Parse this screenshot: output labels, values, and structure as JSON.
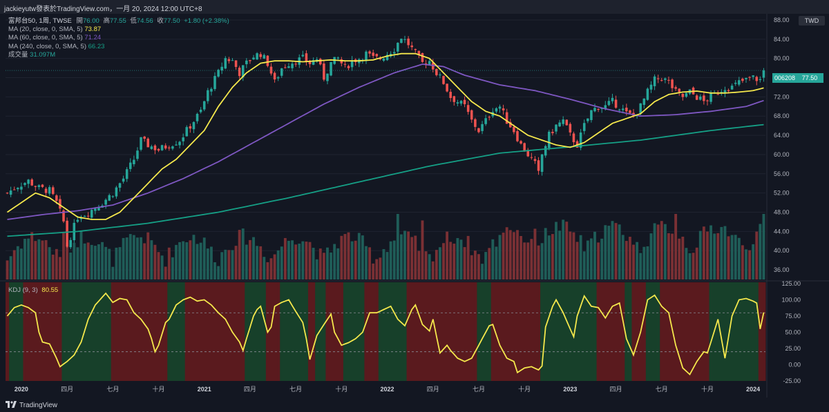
{
  "header": {
    "text": "jackieyutw發表於TradingView.com，一月 20, 2024 12:00 UTC+8"
  },
  "legend": {
    "symbol": "富邦台50, 1周, TWSE",
    "open_label": "開",
    "open": "76.00",
    "high_label": "高",
    "high": "77.55",
    "low_label": "低",
    "low": "74.56",
    "close_label": "收",
    "close": "77.50",
    "change": "+1.80 (+2.38%)",
    "ma20_label": "MA (20, close, 0, SMA, 5)",
    "ma20": "73.87",
    "ma60_label": "MA (60, close, 0, SMA, 5)",
    "ma60": "71.24",
    "ma240_label": "MA (240, close, 0, SMA, 5)",
    "ma240": "66.23",
    "volume_label": "成交量",
    "volume": "31.097M"
  },
  "kdj_legend": {
    "label": "KDJ (9, 3)",
    "value": "80.55"
  },
  "currency": "TWD",
  "price_tag": {
    "symbol": "006208",
    "price": "77.50"
  },
  "footer": {
    "brand": "TradingView"
  },
  "colors": {
    "up": "#26a69a",
    "down": "#ef5350",
    "ma20": "#f5e84c",
    "ma60": "#7e57c2",
    "ma240": "#15a086",
    "kdj": "#f5e84c",
    "bg_up": "#17402a",
    "bg_down": "#5a1a1e"
  },
  "chart_data": {
    "type": "candlestick",
    "price_axis": {
      "ticks": [
        36,
        40,
        44,
        48,
        52,
        56,
        60,
        64,
        68,
        72,
        76,
        80,
        84,
        88
      ],
      "range": [
        34,
        89
      ]
    },
    "kdj_axis": {
      "ticks": [
        -25,
        0,
        25,
        50,
        75,
        100,
        125
      ],
      "labels": [
        "-25.00",
        "0.00",
        "25.00",
        "50.00",
        "75.00",
        "100.00",
        "125.00"
      ],
      "range": [
        -25,
        127
      ],
      "dashed": [
        20,
        80
      ]
    },
    "x_axis": {
      "labels": [
        {
          "text": "2020",
          "week": 4,
          "bold": true
        },
        {
          "text": "四月",
          "week": 17
        },
        {
          "text": "七月",
          "week": 30
        },
        {
          "text": "十月",
          "week": 43
        },
        {
          "text": "2021",
          "week": 56,
          "bold": true
        },
        {
          "text": "四月",
          "week": 69
        },
        {
          "text": "七月",
          "week": 82
        },
        {
          "text": "十月",
          "week": 95
        },
        {
          "text": "2022",
          "week": 108,
          "bold": true
        },
        {
          "text": "四月",
          "week": 121
        },
        {
          "text": "七月",
          "week": 134
        },
        {
          "text": "十月",
          "week": 147
        },
        {
          "text": "2023",
          "week": 160,
          "bold": true
        },
        {
          "text": "四月",
          "week": 173
        },
        {
          "text": "七月",
          "week": 186
        },
        {
          "text": "十月",
          "week": 199
        },
        {
          "text": "2024",
          "week": 212,
          "bold": true
        }
      ]
    },
    "weeks": 216,
    "close_anchors": [
      [
        0,
        52
      ],
      [
        3,
        53.5
      ],
      [
        6,
        54.5
      ],
      [
        9,
        53
      ],
      [
        12,
        52.5
      ],
      [
        14,
        50
      ],
      [
        16,
        46
      ],
      [
        17,
        41
      ],
      [
        18,
        43
      ],
      [
        20,
        47
      ],
      [
        23,
        48
      ],
      [
        27,
        50
      ],
      [
        30,
        52
      ],
      [
        33,
        55
      ],
      [
        36,
        59
      ],
      [
        38,
        63
      ],
      [
        40,
        62
      ],
      [
        43,
        61
      ],
      [
        46,
        62
      ],
      [
        49,
        63
      ],
      [
        52,
        66
      ],
      [
        55,
        69
      ],
      [
        57,
        73
      ],
      [
        60,
        77
      ],
      [
        62,
        80
      ],
      [
        64,
        79.5
      ],
      [
        66,
        77
      ],
      [
        68,
        79
      ],
      [
        70,
        80.5
      ],
      [
        72,
        81
      ],
      [
        74,
        79
      ],
      [
        76,
        75
      ],
      [
        78,
        78
      ],
      [
        80,
        79
      ],
      [
        82,
        79.5
      ],
      [
        84,
        80
      ],
      [
        86,
        79
      ],
      [
        88,
        80
      ],
      [
        90,
        76
      ],
      [
        92,
        79
      ],
      [
        94,
        80
      ],
      [
        96,
        78
      ],
      [
        98,
        79.5
      ],
      [
        100,
        80
      ],
      [
        102,
        81
      ],
      [
        104,
        80
      ],
      [
        106,
        80
      ],
      [
        108,
        81
      ],
      [
        110,
        82
      ],
      [
        112,
        84.5
      ],
      [
        114,
        83
      ],
      [
        116,
        81
      ],
      [
        118,
        79
      ],
      [
        120,
        79.5
      ],
      [
        122,
        77
      ],
      [
        124,
        75
      ],
      [
        126,
        72
      ],
      [
        128,
        71
      ],
      [
        130,
        70
      ],
      [
        132,
        67
      ],
      [
        134,
        65
      ],
      [
        136,
        67
      ],
      [
        138,
        69.5
      ],
      [
        140,
        70
      ],
      [
        142,
        67
      ],
      [
        144,
        65
      ],
      [
        146,
        62
      ],
      [
        148,
        60
      ],
      [
        150,
        58
      ],
      [
        151,
        56
      ],
      [
        152,
        60
      ],
      [
        154,
        64
      ],
      [
        156,
        66
      ],
      [
        158,
        67
      ],
      [
        160,
        64
      ],
      [
        162,
        62
      ],
      [
        164,
        66
      ],
      [
        166,
        69
      ],
      [
        168,
        70
      ],
      [
        170,
        70
      ],
      [
        172,
        71
      ],
      [
        174,
        70
      ],
      [
        176,
        68.5
      ],
      [
        178,
        68
      ],
      [
        180,
        70
      ],
      [
        182,
        73
      ],
      [
        184,
        75.5
      ],
      [
        186,
        76
      ],
      [
        188,
        75
      ],
      [
        190,
        73
      ],
      [
        192,
        72
      ],
      [
        194,
        73
      ],
      [
        196,
        72
      ],
      [
        198,
        71
      ],
      [
        200,
        72
      ],
      [
        202,
        73
      ],
      [
        204,
        74
      ],
      [
        206,
        74
      ],
      [
        208,
        75
      ],
      [
        210,
        75.5
      ],
      [
        212,
        76
      ],
      [
        214,
        75.5
      ],
      [
        215,
        77.5
      ]
    ],
    "ma20_anchors": [
      [
        0,
        48
      ],
      [
        4,
        50
      ],
      [
        8,
        52
      ],
      [
        12,
        51
      ],
      [
        16,
        49
      ],
      [
        20,
        47
      ],
      [
        24,
        46.5
      ],
      [
        28,
        46.5
      ],
      [
        32,
        48
      ],
      [
        36,
        51
      ],
      [
        40,
        54
      ],
      [
        44,
        57
      ],
      [
        48,
        59
      ],
      [
        52,
        62
      ],
      [
        56,
        65
      ],
      [
        60,
        70
      ],
      [
        64,
        74
      ],
      [
        68,
        77
      ],
      [
        72,
        79
      ],
      [
        76,
        79.5
      ],
      [
        80,
        79.5
      ],
      [
        84,
        79.3
      ],
      [
        88,
        79.5
      ],
      [
        92,
        79.7
      ],
      [
        96,
        79.5
      ],
      [
        100,
        79.5
      ],
      [
        104,
        79.7
      ],
      [
        108,
        80.5
      ],
      [
        112,
        81
      ],
      [
        116,
        81
      ],
      [
        120,
        80
      ],
      [
        124,
        77
      ],
      [
        128,
        74
      ],
      [
        132,
        71
      ],
      [
        136,
        69
      ],
      [
        140,
        68
      ],
      [
        144,
        66
      ],
      [
        148,
        64
      ],
      [
        152,
        63
      ],
      [
        156,
        62
      ],
      [
        160,
        61.5
      ],
      [
        164,
        62.5
      ],
      [
        168,
        64.5
      ],
      [
        172,
        66.5
      ],
      [
        176,
        67.5
      ],
      [
        180,
        68.5
      ],
      [
        184,
        71
      ],
      [
        188,
        72.5
      ],
      [
        192,
        73
      ],
      [
        196,
        73.2
      ],
      [
        200,
        72.8
      ],
      [
        204,
        72.8
      ],
      [
        208,
        73
      ],
      [
        212,
        73.3
      ],
      [
        215,
        73.87
      ]
    ],
    "ma60_anchors": [
      [
        0,
        46.5
      ],
      [
        10,
        47.5
      ],
      [
        20,
        48.3
      ],
      [
        30,
        49.5
      ],
      [
        40,
        52
      ],
      [
        50,
        55
      ],
      [
        60,
        58.5
      ],
      [
        70,
        62.5
      ],
      [
        80,
        66.5
      ],
      [
        90,
        70.5
      ],
      [
        100,
        74
      ],
      [
        110,
        77
      ],
      [
        118,
        78.8
      ],
      [
        124,
        78.3
      ],
      [
        130,
        76.5
      ],
      [
        140,
        74.5
      ],
      [
        150,
        73.3
      ],
      [
        160,
        71.5
      ],
      [
        170,
        69.5
      ],
      [
        180,
        68
      ],
      [
        190,
        68.3
      ],
      [
        200,
        69
      ],
      [
        210,
        70
      ],
      [
        215,
        71.24
      ]
    ],
    "ma240_anchors": [
      [
        0,
        43
      ],
      [
        20,
        44
      ],
      [
        40,
        45.7
      ],
      [
        60,
        48
      ],
      [
        80,
        51
      ],
      [
        100,
        54.3
      ],
      [
        120,
        57.6
      ],
      [
        140,
        60.3
      ],
      [
        160,
        61.6
      ],
      [
        180,
        63
      ],
      [
        200,
        65
      ],
      [
        215,
        66.23
      ]
    ],
    "kdj_anchors": [
      [
        0,
        75
      ],
      [
        2,
        88
      ],
      [
        4,
        92
      ],
      [
        6,
        88
      ],
      [
        8,
        80
      ],
      [
        9,
        50
      ],
      [
        10,
        35
      ],
      [
        12,
        32
      ],
      [
        14,
        10
      ],
      [
        15,
        -3
      ],
      [
        17,
        5
      ],
      [
        19,
        15
      ],
      [
        21,
        35
      ],
      [
        23,
        70
      ],
      [
        25,
        92
      ],
      [
        27,
        104
      ],
      [
        28,
        110
      ],
      [
        30,
        96
      ],
      [
        32,
        102
      ],
      [
        34,
        100
      ],
      [
        36,
        80
      ],
      [
        38,
        70
      ],
      [
        40,
        55
      ],
      [
        41,
        40
      ],
      [
        42,
        20
      ],
      [
        43,
        30
      ],
      [
        45,
        65
      ],
      [
        46,
        70
      ],
      [
        48,
        92
      ],
      [
        50,
        100
      ],
      [
        52,
        104
      ],
      [
        54,
        98
      ],
      [
        56,
        100
      ],
      [
        58,
        92
      ],
      [
        60,
        80
      ],
      [
        62,
        70
      ],
      [
        64,
        50
      ],
      [
        66,
        35
      ],
      [
        67,
        22
      ],
      [
        68,
        40
      ],
      [
        70,
        75
      ],
      [
        71,
        85
      ],
      [
        72,
        90
      ],
      [
        73,
        70
      ],
      [
        74,
        50
      ],
      [
        75,
        58
      ],
      [
        76,
        90
      ],
      [
        78,
        96
      ],
      [
        80,
        100
      ],
      [
        82,
        82
      ],
      [
        84,
        65
      ],
      [
        85,
        40
      ],
      [
        86,
        8
      ],
      [
        88,
        45
      ],
      [
        90,
        62
      ],
      [
        92,
        78
      ],
      [
        93,
        50
      ],
      [
        95,
        30
      ],
      [
        97,
        34
      ],
      [
        99,
        40
      ],
      [
        101,
        50
      ],
      [
        103,
        80
      ],
      [
        105,
        80
      ],
      [
        107,
        85
      ],
      [
        109,
        90
      ],
      [
        111,
        70
      ],
      [
        113,
        60
      ],
      [
        115,
        85
      ],
      [
        116,
        92
      ],
      [
        118,
        62
      ],
      [
        120,
        52
      ],
      [
        121,
        70
      ],
      [
        123,
        18
      ],
      [
        125,
        30
      ],
      [
        126,
        22
      ],
      [
        128,
        10
      ],
      [
        130,
        5
      ],
      [
        132,
        10
      ],
      [
        134,
        30
      ],
      [
        136,
        50
      ],
      [
        137,
        60
      ],
      [
        138,
        62
      ],
      [
        140,
        30
      ],
      [
        142,
        10
      ],
      [
        144,
        5
      ],
      [
        145,
        -12
      ],
      [
        147,
        -5
      ],
      [
        149,
        -3
      ],
      [
        151,
        -8
      ],
      [
        152,
        -2
      ],
      [
        153,
        58
      ],
      [
        155,
        90
      ],
      [
        156,
        100
      ],
      [
        158,
        80
      ],
      [
        160,
        55
      ],
      [
        161,
        43
      ],
      [
        162,
        75
      ],
      [
        164,
        106
      ],
      [
        166,
        90
      ],
      [
        168,
        88
      ],
      [
        170,
        72
      ],
      [
        172,
        90
      ],
      [
        174,
        95
      ],
      [
        176,
        40
      ],
      [
        178,
        15
      ],
      [
        180,
        50
      ],
      [
        182,
        100
      ],
      [
        184,
        107
      ],
      [
        186,
        90
      ],
      [
        188,
        80
      ],
      [
        190,
        30
      ],
      [
        192,
        -5
      ],
      [
        194,
        -15
      ],
      [
        196,
        5
      ],
      [
        198,
        20
      ],
      [
        199,
        18
      ],
      [
        200,
        35
      ],
      [
        202,
        70
      ],
      [
        204,
        10
      ],
      [
        206,
        75
      ],
      [
        208,
        100
      ],
      [
        210,
        102
      ],
      [
        212,
        98
      ],
      [
        213,
        95
      ],
      [
        214,
        55
      ],
      [
        215,
        80.55
      ]
    ],
    "kdj_zones": [
      [
        0,
        1,
        "down"
      ],
      [
        1,
        5,
        "up"
      ],
      [
        5,
        16,
        "down"
      ],
      [
        16,
        30,
        "up"
      ],
      [
        30,
        46,
        "down"
      ],
      [
        46,
        51,
        "up"
      ],
      [
        51,
        68,
        "down"
      ],
      [
        68,
        74,
        "up"
      ],
      [
        74,
        78,
        "down"
      ],
      [
        78,
        86,
        "up"
      ],
      [
        86,
        88,
        "down"
      ],
      [
        88,
        91,
        "up"
      ],
      [
        91,
        96,
        "down"
      ],
      [
        96,
        102,
        "up"
      ],
      [
        102,
        106,
        "down"
      ],
      [
        106,
        114,
        "up"
      ],
      [
        114,
        116,
        "down"
      ],
      [
        116,
        134,
        "down"
      ],
      [
        134,
        138,
        "up"
      ],
      [
        138,
        152,
        "down"
      ],
      [
        152,
        168,
        "up"
      ],
      [
        168,
        176,
        "down"
      ],
      [
        176,
        178,
        "up"
      ],
      [
        178,
        182,
        "down"
      ],
      [
        182,
        186,
        "up"
      ],
      [
        186,
        200,
        "down"
      ],
      [
        200,
        204,
        "up"
      ],
      [
        204,
        214,
        "up"
      ],
      [
        214,
        216,
        "down"
      ]
    ]
  }
}
